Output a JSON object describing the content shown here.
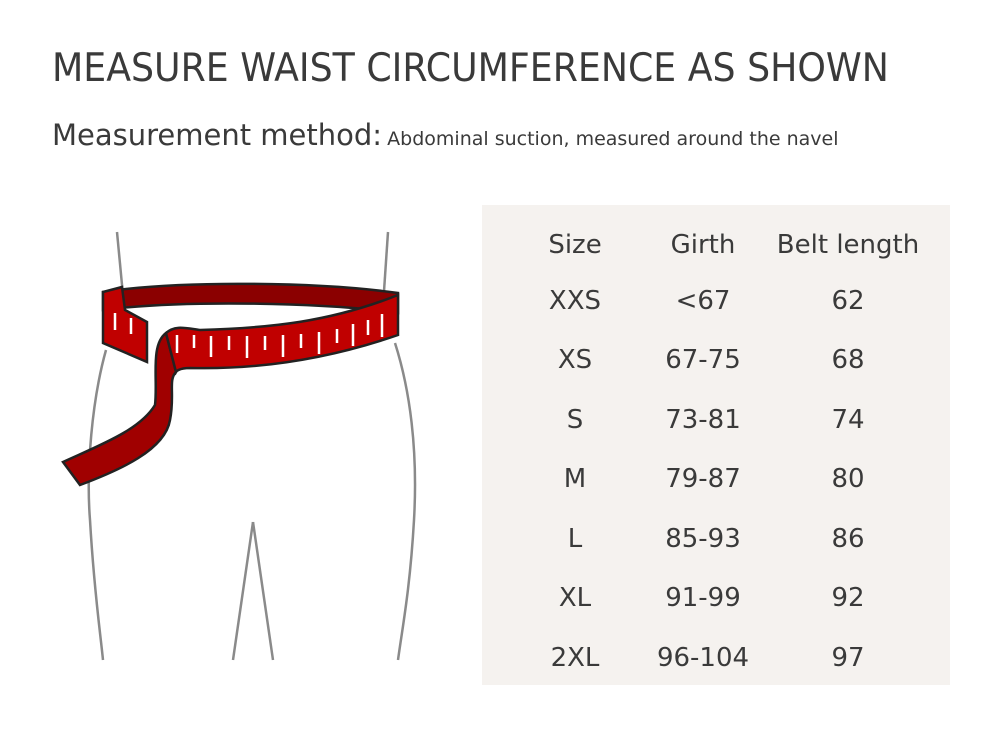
{
  "title": "MEASURE WAIST CIRCUMFERENCE AS SHOWN",
  "subtitle": {
    "label": "Measurement method:",
    "text": "Abdominal suction, measured around the navel"
  },
  "illustration": {
    "icon": "waist-measuring-tape-illustration",
    "tape_color": "#c00000"
  },
  "table": {
    "background": "#f5f2ef",
    "headers": [
      "Size",
      "Girth",
      "Belt length"
    ],
    "rows": [
      [
        "XXS",
        "<67",
        "62"
      ],
      [
        "XS",
        "67-75",
        "68"
      ],
      [
        "S",
        "73-81",
        "74"
      ],
      [
        "M",
        "79-87",
        "80"
      ],
      [
        "L",
        "85-93",
        "86"
      ],
      [
        "XL",
        "91-99",
        "92"
      ],
      [
        "2XL",
        "96-104",
        "97"
      ]
    ]
  }
}
